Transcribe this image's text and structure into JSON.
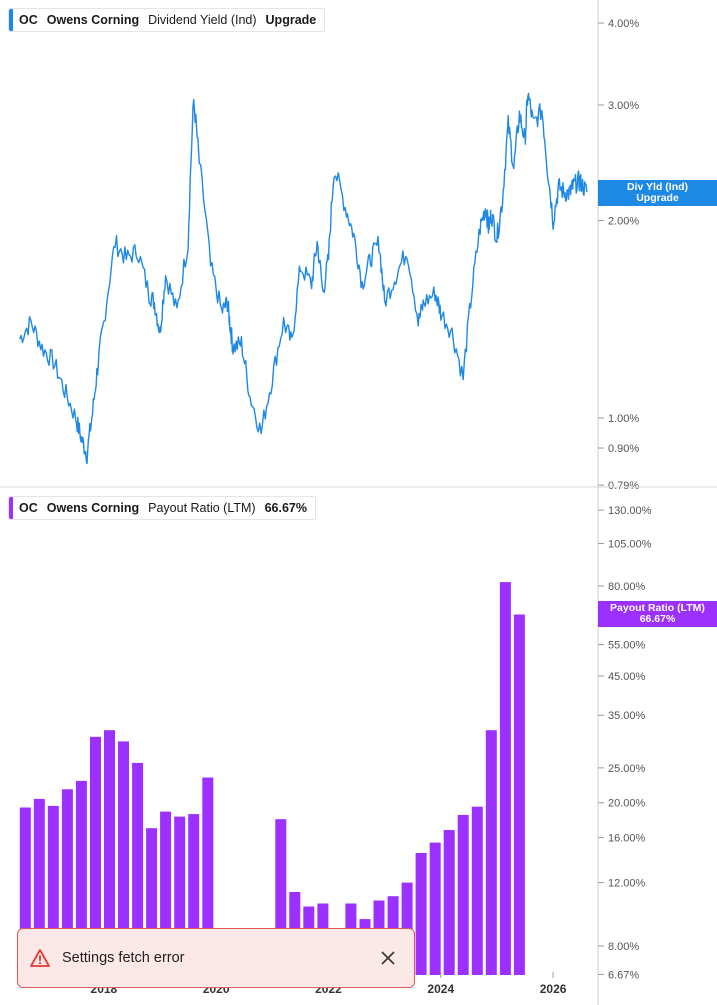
{
  "top_panel": {
    "legend": {
      "ticker": "OC",
      "name": "Owens Corning",
      "metric": "Dividend Yield (Ind)",
      "value": "Upgrade"
    },
    "badge": {
      "line1": "Div Yld (Ind)",
      "line2": "Upgrade"
    },
    "color": "#1e88e5"
  },
  "bottom_panel": {
    "legend": {
      "ticker": "OC",
      "name": "Owens Corning",
      "metric": "Payout Ratio (LTM)",
      "value": "66.67%"
    },
    "badge": {
      "line1": "Payout Ratio (LTM)",
      "line2": "66.67%"
    },
    "color": "#9b30ff"
  },
  "toast": {
    "message": "Settings fetch error",
    "icon": "warning-triangle-icon",
    "close_icon": "close-icon",
    "color": "#e53935"
  },
  "chart_data": [
    {
      "type": "line",
      "series": [
        {
          "x": [
            "2016.5",
            "2016.7",
            "2016.9",
            "2017.1",
            "2017.3",
            "2017.5",
            "2017.6",
            "2017.7",
            "2017.8",
            "2017.9",
            "2018.0",
            "2018.2",
            "2018.4",
            "2018.6",
            "2018.8",
            "2018.9",
            "2019.0",
            "2019.1",
            "2019.3",
            "2019.5",
            "2019.6",
            "2019.7",
            "2019.9",
            "2020.1",
            "2020.2",
            "2020.25",
            "2020.3",
            "2020.45",
            "2020.6",
            "2020.8",
            "2021.0",
            "2021.2",
            "2021.35",
            "2021.5",
            "2021.7",
            "2021.8",
            "2021.9",
            "2022.0",
            "2022.1",
            "2022.3",
            "2022.45",
            "2022.6",
            "2022.75",
            "2022.9",
            "2023.0",
            "2023.2",
            "2023.4",
            "2023.6",
            "2023.7",
            "2023.9",
            "2024.0",
            "2024.2",
            "2024.4",
            "2024.55",
            "2024.7",
            "2024.8",
            "2024.85",
            "2024.9",
            "2025.0",
            "2025.1",
            "2025.2",
            "2025.3",
            "2025.4",
            "2025.5",
            "2025.55",
            "2025.65",
            "2025.8",
            "2025.9",
            "2026.0",
            "2026.1",
            "2026.2",
            "2026.3",
            "2026.35",
            "2026.45",
            "2026.5",
            "2026.6"
          ],
          "y": [
            1.32,
            1.4,
            1.28,
            1.22,
            1.1,
            1.0,
            0.93,
            0.88,
            1.02,
            1.22,
            1.4,
            1.85,
            1.75,
            1.8,
            1.55,
            1.5,
            1.35,
            1.65,
            1.45,
            1.85,
            3.05,
            2.45,
            1.7,
            1.45,
            1.5,
            1.38,
            1.28,
            1.3,
            1.08,
            0.95,
            1.15,
            1.4,
            1.3,
            1.7,
            1.6,
            1.85,
            1.55,
            1.75,
            2.4,
            2.1,
            1.9,
            1.6,
            1.75,
            1.85,
            1.5,
            1.65,
            1.8,
            1.4,
            1.5,
            1.55,
            1.45,
            1.35,
            1.15,
            1.55,
            1.95,
            2.1,
            1.95,
            2.05,
            1.88,
            2.15,
            2.8,
            2.4,
            2.9,
            2.65,
            3.12,
            2.8,
            2.95,
            2.4,
            2.0,
            2.25,
            2.21,
            2.2,
            2.25,
            2.3,
            2.28,
            2.21
          ]
        }
      ],
      "yscale": "log",
      "yticks": [
        "4.00%",
        "3.00%",
        "2.00%",
        "1.00%",
        "0.90%",
        "0.79%"
      ],
      "ylim": [
        0.79,
        4.35
      ],
      "xticks": [
        "2018",
        "2020",
        "2022",
        "2024",
        "2026"
      ]
    },
    {
      "type": "bar",
      "series": [
        {
          "x": [
            "2016.6",
            "2016.85",
            "2017.1",
            "2017.35",
            "2017.6",
            "2017.85",
            "2018.1",
            "2018.35",
            "2018.6",
            "2018.85",
            "2019.1",
            "2019.35",
            "2019.6",
            "2019.85",
            "2021.15",
            "2021.4",
            "2021.65",
            "2021.9",
            "2022.4",
            "2022.65",
            "2022.9",
            "2023.15",
            "2023.4",
            "2023.65",
            "2023.9",
            "2024.15",
            "2024.4",
            "2024.65",
            "2024.9",
            "2025.15",
            "2025.4"
          ],
          "values": [
            19.4,
            20.5,
            19.6,
            21.8,
            23.0,
            30.5,
            31.8,
            29.6,
            25.8,
            17.0,
            18.9,
            18.3,
            18.6,
            23.5,
            18.0,
            11.3,
            10.3,
            10.5,
            10.5,
            9.5,
            10.7,
            11.0,
            12.0,
            14.5,
            15.5,
            16.8,
            18.5,
            19.5,
            31.8,
            82.0,
            66.67
          ]
        }
      ],
      "yscale": "log",
      "yticks": [
        "130.00%",
        "105.00%",
        "80.00%",
        "55.00%",
        "45.00%",
        "35.00%",
        "25.00%",
        "20.00%",
        "16.00%",
        "12.00%",
        "8.00%",
        "6.67%"
      ],
      "ylim": [
        6.67,
        140
      ],
      "xticks": [
        "2018",
        "2020",
        "2022",
        "2024",
        "2026"
      ]
    }
  ]
}
